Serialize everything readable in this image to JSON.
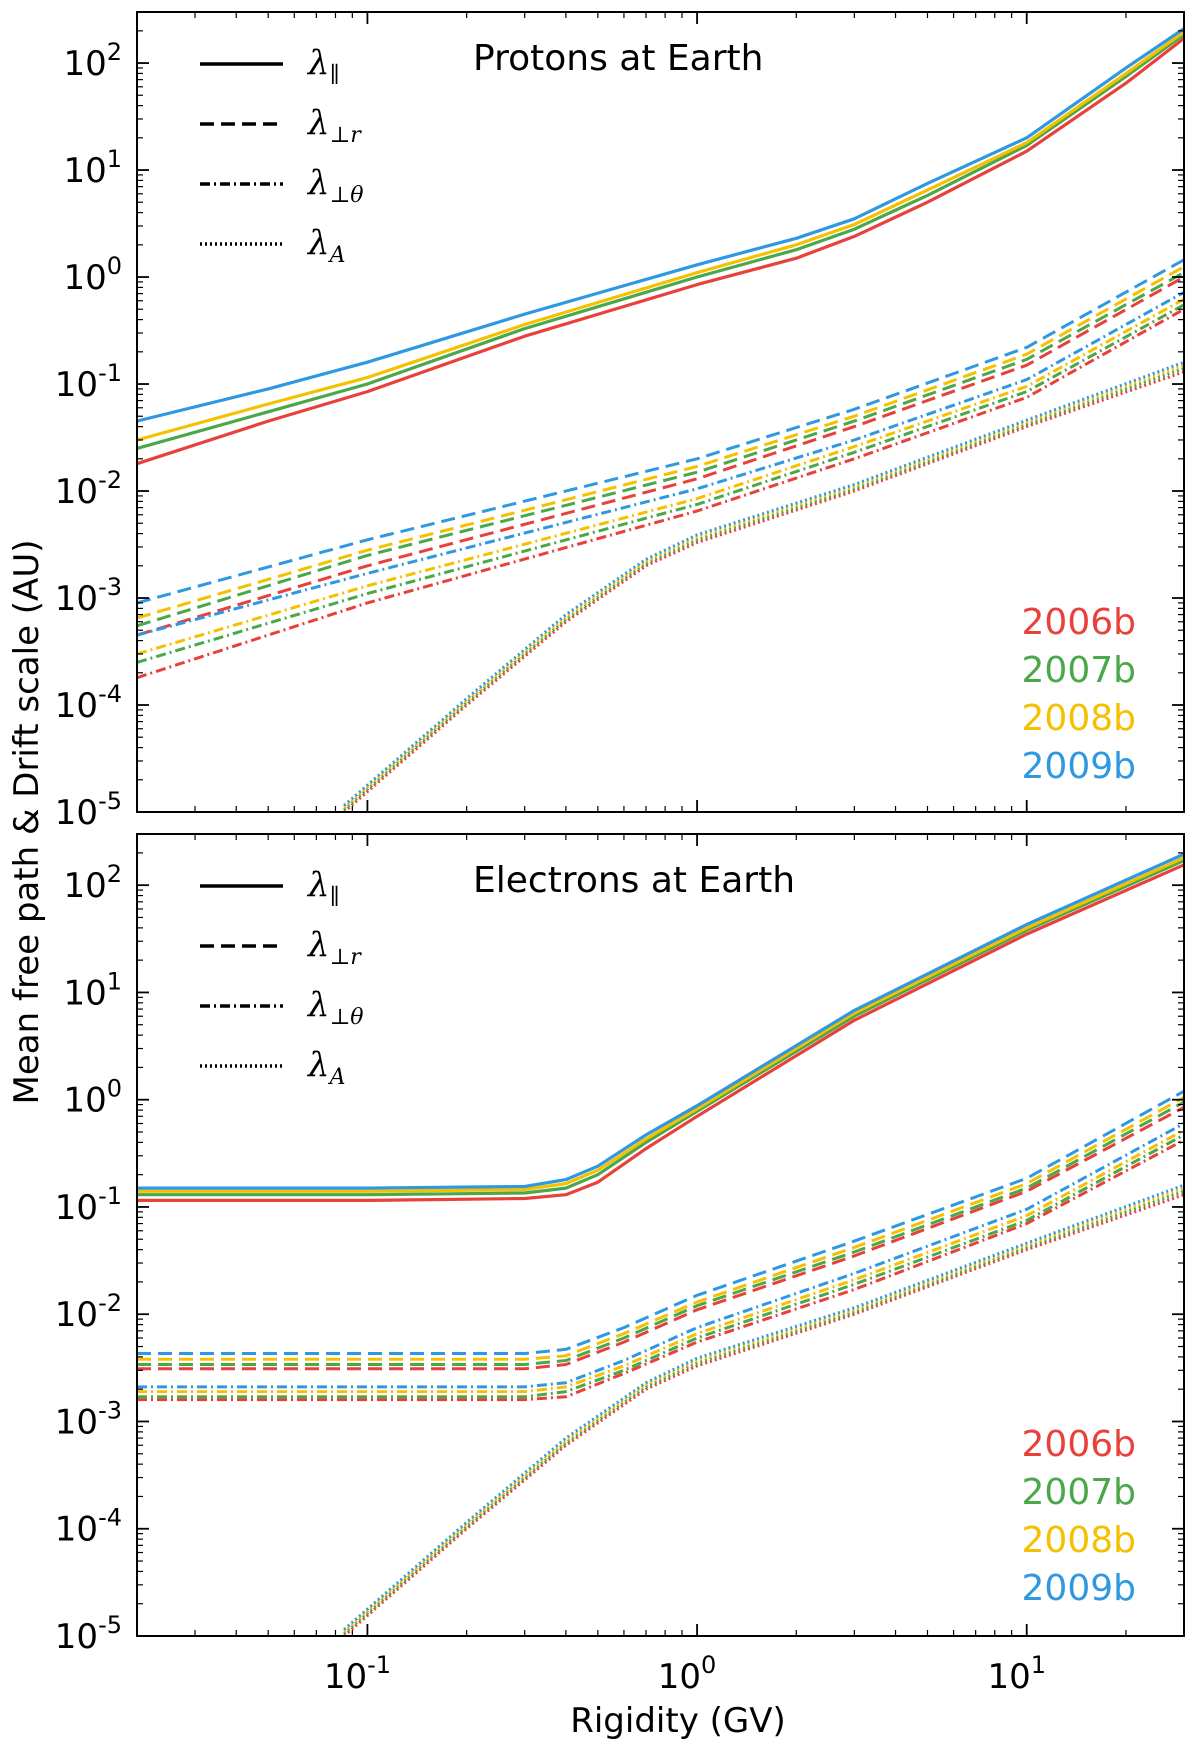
{
  "figure": {
    "ylabel": "Mean free path & Drift scale  (AU)",
    "xlabel": "Rigidity (GV)"
  },
  "colors": {
    "2006b": "#e8413c",
    "2007b": "#4aa84a",
    "2008b": "#f5c000",
    "2009b": "#2e98e0"
  },
  "line_styles": {
    "lambda_par": "solid",
    "lambda_perp_r": "dashed",
    "lambda_perp_theta": "dashdot",
    "lambda_A": "dotted"
  },
  "chart_data": [
    {
      "type": "line",
      "title": "Protons at Earth",
      "xscale": "log",
      "yscale": "log",
      "xlim": [
        0.02,
        30
      ],
      "ylim": [
        1e-05,
        300
      ],
      "x_ticks": [
        {
          "value": 0.1,
          "base": "10",
          "exp": "-1"
        },
        {
          "value": 1,
          "base": "10",
          "exp": "0"
        },
        {
          "value": 10,
          "base": "10",
          "exp": "1"
        }
      ],
      "y_ticks": [
        {
          "value": 100,
          "base": "10",
          "exp": "2"
        },
        {
          "value": 10,
          "base": "10",
          "exp": "1"
        },
        {
          "value": 1,
          "base": "10",
          "exp": "0"
        },
        {
          "value": 0.1,
          "base": "10",
          "exp": "-1"
        },
        {
          "value": 0.01,
          "base": "10",
          "exp": "-2"
        },
        {
          "value": 0.001,
          "base": "10",
          "exp": "-3"
        },
        {
          "value": 0.0001,
          "base": "10",
          "exp": "-4"
        },
        {
          "value": 1e-05,
          "base": "10",
          "exp": "-5"
        }
      ],
      "legend": [
        {
          "key": "lambda_par",
          "main": "λ",
          "sub": "∥"
        },
        {
          "key": "lambda_perp_r",
          "main": "λ",
          "sub": "⊥r"
        },
        {
          "key": "lambda_perp_theta",
          "main": "λ",
          "sub": "⊥θ"
        },
        {
          "key": "lambda_A",
          "main": "λ",
          "sub": "A"
        }
      ],
      "year_legend": [
        "2006b",
        "2007b",
        "2008b",
        "2009b"
      ],
      "series": [
        {
          "name": "2006b λ∥",
          "year": "2006b",
          "quantity": "lambda_par",
          "x": [
            0.02,
            0.05,
            0.1,
            0.3,
            1,
            2,
            3,
            5,
            10,
            20,
            30
          ],
          "y": [
            0.018,
            0.045,
            0.085,
            0.28,
            0.85,
            1.5,
            2.4,
            5,
            15,
            65,
            170
          ]
        },
        {
          "name": "2007b λ∥",
          "year": "2007b",
          "quantity": "lambda_par",
          "x": [
            0.02,
            0.05,
            0.1,
            0.3,
            1,
            2,
            3,
            5,
            10,
            20,
            30
          ],
          "y": [
            0.025,
            0.055,
            0.1,
            0.33,
            1.0,
            1.8,
            2.8,
            5.8,
            17,
            75,
            185
          ]
        },
        {
          "name": "2008b λ∥",
          "year": "2008b",
          "quantity": "lambda_par",
          "x": [
            0.02,
            0.05,
            0.1,
            0.3,
            1,
            2,
            3,
            5,
            10,
            20,
            30
          ],
          "y": [
            0.03,
            0.065,
            0.115,
            0.36,
            1.1,
            2.0,
            3.1,
            6.5,
            18,
            80,
            195
          ]
        },
        {
          "name": "2009b λ∥",
          "year": "2009b",
          "quantity": "lambda_par",
          "x": [
            0.02,
            0.05,
            0.1,
            0.3,
            1,
            2,
            3,
            5,
            10,
            20,
            30
          ],
          "y": [
            0.045,
            0.09,
            0.16,
            0.45,
            1.3,
            2.3,
            3.5,
            7.5,
            20,
            90,
            210
          ]
        },
        {
          "name": "2006b λ⊥r",
          "year": "2006b",
          "quantity": "lambda_perp_r",
          "x": [
            0.02,
            0.1,
            1,
            3,
            10,
            30
          ],
          "y": [
            0.00045,
            0.002,
            0.013,
            0.04,
            0.15,
            1.0
          ]
        },
        {
          "name": "2007b λ⊥r",
          "year": "2007b",
          "quantity": "lambda_perp_r",
          "x": [
            0.02,
            0.1,
            1,
            3,
            10,
            30
          ],
          "y": [
            0.00055,
            0.0025,
            0.015,
            0.045,
            0.17,
            1.1
          ]
        },
        {
          "name": "2008b λ⊥r",
          "year": "2008b",
          "quantity": "lambda_perp_r",
          "x": [
            0.02,
            0.1,
            1,
            3,
            10,
            30
          ],
          "y": [
            0.00065,
            0.0028,
            0.017,
            0.05,
            0.19,
            1.25
          ]
        },
        {
          "name": "2009b λ⊥r",
          "year": "2009b",
          "quantity": "lambda_perp_r",
          "x": [
            0.02,
            0.1,
            1,
            3,
            10,
            30
          ],
          "y": [
            0.0009,
            0.0035,
            0.02,
            0.058,
            0.22,
            1.45
          ]
        },
        {
          "name": "2006b λ⊥θ",
          "year": "2006b",
          "quantity": "lambda_perp_theta",
          "x": [
            0.02,
            0.1,
            1,
            3,
            10,
            30
          ],
          "y": [
            0.00018,
            0.0009,
            0.0065,
            0.02,
            0.075,
            0.5
          ]
        },
        {
          "name": "2007b λ⊥θ",
          "year": "2007b",
          "quantity": "lambda_perp_theta",
          "x": [
            0.02,
            0.1,
            1,
            3,
            10,
            30
          ],
          "y": [
            0.00025,
            0.0011,
            0.0075,
            0.023,
            0.085,
            0.55
          ]
        },
        {
          "name": "2008b λ⊥θ",
          "year": "2008b",
          "quantity": "lambda_perp_theta",
          "x": [
            0.02,
            0.1,
            1,
            3,
            10,
            30
          ],
          "y": [
            0.0003,
            0.0013,
            0.0085,
            0.026,
            0.095,
            0.62
          ]
        },
        {
          "name": "2009b λ⊥θ",
          "year": "2009b",
          "quantity": "lambda_perp_theta",
          "x": [
            0.02,
            0.1,
            1,
            3,
            10,
            30
          ],
          "y": [
            0.00045,
            0.0017,
            0.0105,
            0.03,
            0.11,
            0.72
          ]
        },
        {
          "name": "2006b λA",
          "year": "2006b",
          "quantity": "lambda_A",
          "x": [
            0.085,
            0.2,
            0.4,
            0.7,
            1,
            3,
            10,
            30
          ],
          "y": [
            1e-05,
            0.0001,
            0.0006,
            0.002,
            0.0033,
            0.01,
            0.04,
            0.13
          ]
        },
        {
          "name": "2007b λA",
          "year": "2007b",
          "quantity": "lambda_A",
          "x": [
            0.085,
            0.2,
            0.4,
            0.7,
            1,
            3,
            10,
            30
          ],
          "y": [
            1.05e-05,
            0.000105,
            0.00063,
            0.0021,
            0.0035,
            0.0105,
            0.042,
            0.14
          ]
        },
        {
          "name": "2008b λA",
          "year": "2008b",
          "quantity": "lambda_A",
          "x": [
            0.085,
            0.2,
            0.4,
            0.7,
            1,
            3,
            10,
            30
          ],
          "y": [
            1.1e-05,
            0.00011,
            0.00066,
            0.0022,
            0.0037,
            0.011,
            0.044,
            0.15
          ]
        },
        {
          "name": "2009b λA",
          "year": "2009b",
          "quantity": "lambda_A",
          "x": [
            0.085,
            0.2,
            0.4,
            0.7,
            1,
            3,
            10,
            30
          ],
          "y": [
            1.15e-05,
            0.000115,
            0.0007,
            0.0023,
            0.0039,
            0.0115,
            0.046,
            0.16
          ]
        }
      ]
    },
    {
      "type": "line",
      "title": "Electrons at Earth",
      "xscale": "log",
      "yscale": "log",
      "xlim": [
        0.02,
        30
      ],
      "ylim": [
        1e-05,
        300
      ],
      "x_ticks": [
        {
          "value": 0.1,
          "base": "10",
          "exp": "-1"
        },
        {
          "value": 1,
          "base": "10",
          "exp": "0"
        },
        {
          "value": 10,
          "base": "10",
          "exp": "1"
        }
      ],
      "y_ticks": [
        {
          "value": 100,
          "base": "10",
          "exp": "2"
        },
        {
          "value": 10,
          "base": "10",
          "exp": "1"
        },
        {
          "value": 1,
          "base": "10",
          "exp": "0"
        },
        {
          "value": 0.1,
          "base": "10",
          "exp": "-1"
        },
        {
          "value": 0.01,
          "base": "10",
          "exp": "-2"
        },
        {
          "value": 0.001,
          "base": "10",
          "exp": "-3"
        },
        {
          "value": 0.0001,
          "base": "10",
          "exp": "-4"
        },
        {
          "value": 1e-05,
          "base": "10",
          "exp": "-5"
        }
      ],
      "legend": [
        {
          "key": "lambda_par",
          "main": "λ",
          "sub": "∥"
        },
        {
          "key": "lambda_perp_r",
          "main": "λ",
          "sub": "⊥r"
        },
        {
          "key": "lambda_perp_theta",
          "main": "λ",
          "sub": "⊥θ"
        },
        {
          "key": "lambda_A",
          "main": "λ",
          "sub": "A"
        }
      ],
      "year_legend": [
        "2006b",
        "2007b",
        "2008b",
        "2009b"
      ],
      "series": [
        {
          "name": "2006b λ∥",
          "year": "2006b",
          "quantity": "lambda_par",
          "x": [
            0.02,
            0.1,
            0.3,
            0.4,
            0.5,
            0.7,
            1,
            3,
            10,
            30
          ],
          "y": [
            0.115,
            0.115,
            0.12,
            0.13,
            0.17,
            0.35,
            0.7,
            5.5,
            35,
            155
          ]
        },
        {
          "name": "2007b λ∥",
          "year": "2007b",
          "quantity": "lambda_par",
          "x": [
            0.02,
            0.1,
            0.3,
            0.4,
            0.5,
            0.7,
            1,
            3,
            10,
            30
          ],
          "y": [
            0.13,
            0.13,
            0.135,
            0.15,
            0.2,
            0.4,
            0.78,
            6.0,
            38,
            170
          ]
        },
        {
          "name": "2008b λ∥",
          "year": "2008b",
          "quantity": "lambda_par",
          "x": [
            0.02,
            0.1,
            0.3,
            0.4,
            0.5,
            0.7,
            1,
            3,
            10,
            30
          ],
          "y": [
            0.14,
            0.14,
            0.145,
            0.165,
            0.22,
            0.43,
            0.82,
            6.4,
            40,
            180
          ]
        },
        {
          "name": "2009b λ∥",
          "year": "2009b",
          "quantity": "lambda_par",
          "x": [
            0.02,
            0.1,
            0.3,
            0.4,
            0.5,
            0.7,
            1,
            3,
            10,
            30
          ],
          "y": [
            0.15,
            0.15,
            0.155,
            0.18,
            0.24,
            0.47,
            0.88,
            6.8,
            43,
            195
          ]
        },
        {
          "name": "2006b λ⊥r",
          "year": "2006b",
          "quantity": "lambda_perp_r",
          "x": [
            0.02,
            0.3,
            0.4,
            0.6,
            1,
            3,
            10,
            30
          ],
          "y": [
            0.0031,
            0.0031,
            0.0034,
            0.0055,
            0.011,
            0.035,
            0.14,
            0.85
          ]
        },
        {
          "name": "2007b λ⊥r",
          "year": "2007b",
          "quantity": "lambda_perp_r",
          "x": [
            0.02,
            0.3,
            0.4,
            0.6,
            1,
            3,
            10,
            30
          ],
          "y": [
            0.0034,
            0.0034,
            0.0037,
            0.006,
            0.012,
            0.038,
            0.15,
            0.95
          ]
        },
        {
          "name": "2008b λ⊥r",
          "year": "2008b",
          "quantity": "lambda_perp_r",
          "x": [
            0.02,
            0.3,
            0.4,
            0.6,
            1,
            3,
            10,
            30
          ],
          "y": [
            0.0038,
            0.0038,
            0.0041,
            0.0066,
            0.013,
            0.042,
            0.165,
            1.05
          ]
        },
        {
          "name": "2009b λ⊥r",
          "year": "2009b",
          "quantity": "lambda_perp_r",
          "x": [
            0.02,
            0.3,
            0.4,
            0.6,
            1,
            3,
            10,
            30
          ],
          "y": [
            0.0043,
            0.0043,
            0.0047,
            0.0075,
            0.015,
            0.048,
            0.185,
            1.2
          ]
        },
        {
          "name": "2006b λ⊥θ",
          "year": "2006b",
          "quantity": "lambda_perp_theta",
          "x": [
            0.02,
            0.3,
            0.4,
            0.6,
            1,
            3,
            10,
            30
          ],
          "y": [
            0.0016,
            0.0016,
            0.0017,
            0.0028,
            0.0055,
            0.017,
            0.07,
            0.42
          ]
        },
        {
          "name": "2007b λ⊥θ",
          "year": "2007b",
          "quantity": "lambda_perp_theta",
          "x": [
            0.02,
            0.3,
            0.4,
            0.6,
            1,
            3,
            10,
            30
          ],
          "y": [
            0.0017,
            0.0017,
            0.0019,
            0.003,
            0.006,
            0.019,
            0.075,
            0.47
          ]
        },
        {
          "name": "2008b λ⊥θ",
          "year": "2008b",
          "quantity": "lambda_perp_theta",
          "x": [
            0.02,
            0.3,
            0.4,
            0.6,
            1,
            3,
            10,
            30
          ],
          "y": [
            0.0019,
            0.0019,
            0.0021,
            0.0033,
            0.0066,
            0.021,
            0.083,
            0.52
          ]
        },
        {
          "name": "2009b λ⊥θ",
          "year": "2009b",
          "quantity": "lambda_perp_theta",
          "x": [
            0.02,
            0.3,
            0.4,
            0.6,
            1,
            3,
            10,
            30
          ],
          "y": [
            0.0021,
            0.0021,
            0.0023,
            0.0037,
            0.0075,
            0.024,
            0.095,
            0.6
          ]
        },
        {
          "name": "2006b λA",
          "year": "2006b",
          "quantity": "lambda_A",
          "x": [
            0.085,
            0.2,
            0.4,
            0.7,
            1,
            3,
            10,
            30
          ],
          "y": [
            1e-05,
            0.0001,
            0.0006,
            0.002,
            0.0033,
            0.01,
            0.04,
            0.13
          ]
        },
        {
          "name": "2007b λA",
          "year": "2007b",
          "quantity": "lambda_A",
          "x": [
            0.085,
            0.2,
            0.4,
            0.7,
            1,
            3,
            10,
            30
          ],
          "y": [
            1.05e-05,
            0.000105,
            0.00063,
            0.0021,
            0.0035,
            0.0105,
            0.042,
            0.14
          ]
        },
        {
          "name": "2008b λA",
          "year": "2008b",
          "quantity": "lambda_A",
          "x": [
            0.085,
            0.2,
            0.4,
            0.7,
            1,
            3,
            10,
            30
          ],
          "y": [
            1.1e-05,
            0.00011,
            0.00066,
            0.0022,
            0.0037,
            0.011,
            0.044,
            0.15
          ]
        },
        {
          "name": "2009b λA",
          "year": "2009b",
          "quantity": "lambda_A",
          "x": [
            0.085,
            0.2,
            0.4,
            0.7,
            1,
            3,
            10,
            30
          ],
          "y": [
            1.15e-05,
            0.000115,
            0.0007,
            0.0023,
            0.0039,
            0.0115,
            0.046,
            0.16
          ]
        }
      ]
    }
  ]
}
